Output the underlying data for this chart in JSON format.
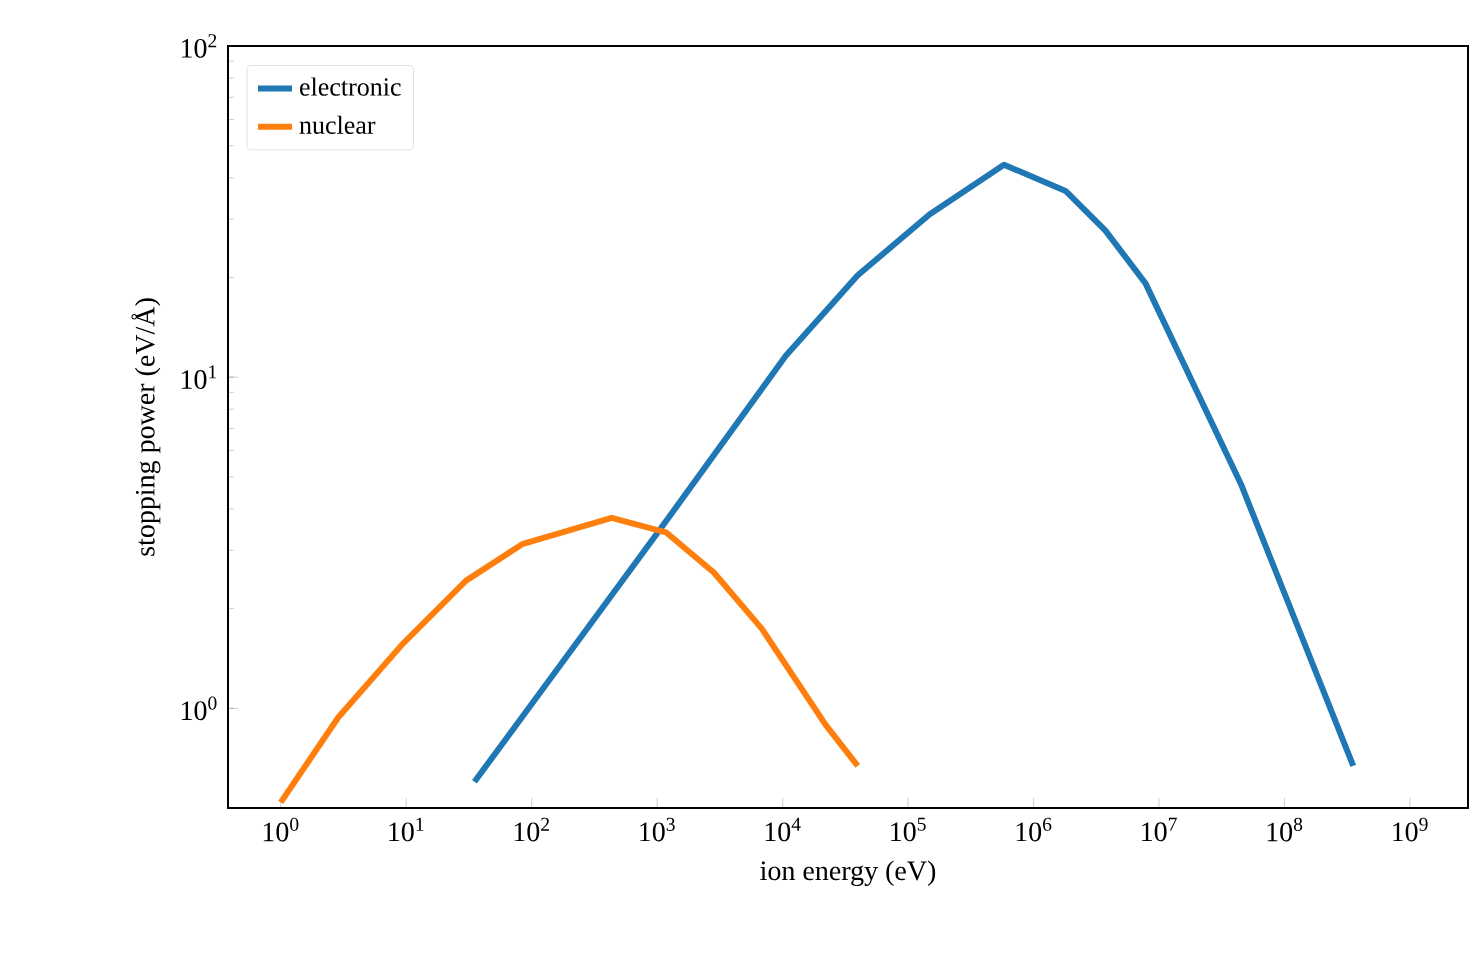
{
  "chart_data": {
    "type": "line",
    "xlabel": "ion energy (eV)",
    "ylabel": "stopping power (eV/Å)",
    "log": "xy",
    "grid": false,
    "legend": "top left",
    "xlim": [
      0.38,
      2900000000
    ],
    "ylim": [
      0.5,
      100
    ],
    "xticks": [
      {
        "value": 1,
        "label": "10$^{0}$"
      },
      {
        "value": 10,
        "label": "10$^{1}$"
      },
      {
        "value": 100,
        "label": "10$^{2}$"
      },
      {
        "value": 1000,
        "label": "10$^{3}$"
      },
      {
        "value": 10000,
        "label": "10$^{4}$"
      },
      {
        "value": 100000,
        "label": "10$^{5}$"
      },
      {
        "value": 1000000,
        "label": "10$^{6}$"
      },
      {
        "value": 10000000,
        "label": "10$^{7}$"
      },
      {
        "value": 100000000,
        "label": "10$^{8}$"
      },
      {
        "value": 1000000000,
        "label": "10$^{9}$"
      }
    ],
    "yticks": [
      {
        "value": 1,
        "label": "10$^{0}$"
      },
      {
        "value": 10,
        "label": "10$^{1}$"
      },
      {
        "value": 100,
        "label": "10$^{2}$"
      }
    ],
    "series": [
      {
        "name": "electronic",
        "color": "#1f77b4",
        "x": [
          35,
          1015,
          10600,
          39700,
          148000,
          581000,
          1800000,
          3740000,
          7800000,
          45000000,
          353000000
        ],
        "values": [
          0.6,
          3.4,
          11.6,
          20.3,
          31,
          43.8,
          36.5,
          27.7,
          19.2,
          4.75,
          0.67
        ]
      },
      {
        "name": "nuclear",
        "color": "#ff7f0e",
        "x": [
          1.0,
          2.88,
          9.3,
          30,
          84,
          434,
          1175,
          2830,
          6820,
          22100,
          39700
        ],
        "values": [
          0.52,
          0.94,
          1.56,
          2.43,
          3.13,
          3.76,
          3.4,
          2.57,
          1.74,
          0.89,
          0.67
        ]
      }
    ]
  }
}
